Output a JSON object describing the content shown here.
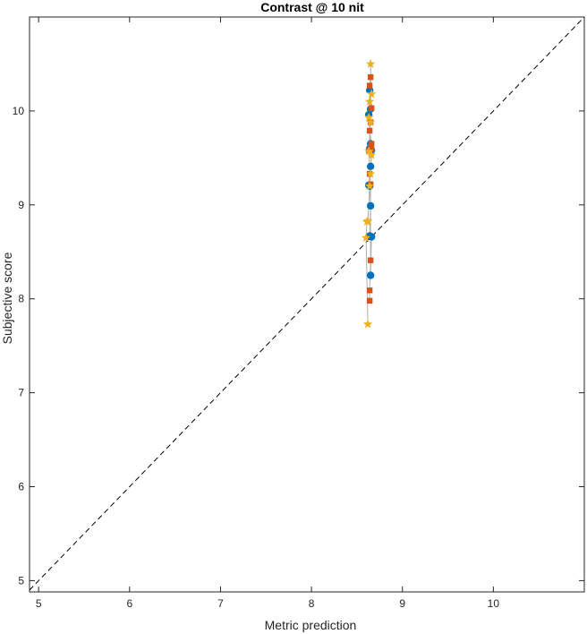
{
  "chart_data": {
    "type": "scatter",
    "title": "Contrast @ 10 nit",
    "xlabel": "Metric prediction",
    "ylabel": "Subjective score",
    "xlim": [
      4.9,
      11.0
    ],
    "ylim": [
      4.88,
      11.0
    ],
    "xticks": [
      5,
      6,
      7,
      8,
      9,
      10
    ],
    "yticks": [
      5,
      6,
      7,
      8,
      9,
      10
    ],
    "grid": false,
    "diagonal": {
      "style": "dashed",
      "color": "#000000",
      "from": [
        4.9,
        4.9
      ],
      "to": [
        11.0,
        11.0
      ]
    },
    "series": [
      {
        "marker": "circle",
        "color": "#0072bd",
        "x": [
          8.64,
          8.65,
          8.63,
          8.65,
          8.64,
          8.66,
          8.65,
          8.64,
          8.63,
          8.65,
          8.66,
          8.64,
          8.65
        ],
        "y": [
          10.22,
          10.02,
          9.96,
          9.65,
          9.6,
          9.58,
          9.41,
          9.2,
          9.21,
          8.99,
          8.66,
          8.67,
          8.25
        ]
      },
      {
        "marker": "square",
        "color": "#d95319",
        "x": [
          8.65,
          8.64,
          8.66,
          8.65,
          8.64,
          8.66,
          8.65,
          8.66,
          8.64,
          8.65,
          8.65,
          8.64,
          8.64,
          8.63
        ],
        "y": [
          10.36,
          10.27,
          10.03,
          9.88,
          9.79,
          9.65,
          9.62,
          9.59,
          9.33,
          9.22,
          8.41,
          8.09,
          7.98,
          9.58
        ]
      },
      {
        "marker": "star",
        "color": "#edb120",
        "x": [
          8.65,
          8.66,
          8.64,
          8.63,
          8.65,
          8.63,
          8.66,
          8.65,
          8.64,
          8.62,
          8.61,
          8.6,
          8.62
        ],
        "y": [
          10.5,
          10.18,
          10.1,
          9.93,
          9.88,
          9.57,
          9.53,
          9.33,
          9.2,
          8.83,
          8.82,
          8.65,
          7.73
        ]
      }
    ]
  }
}
